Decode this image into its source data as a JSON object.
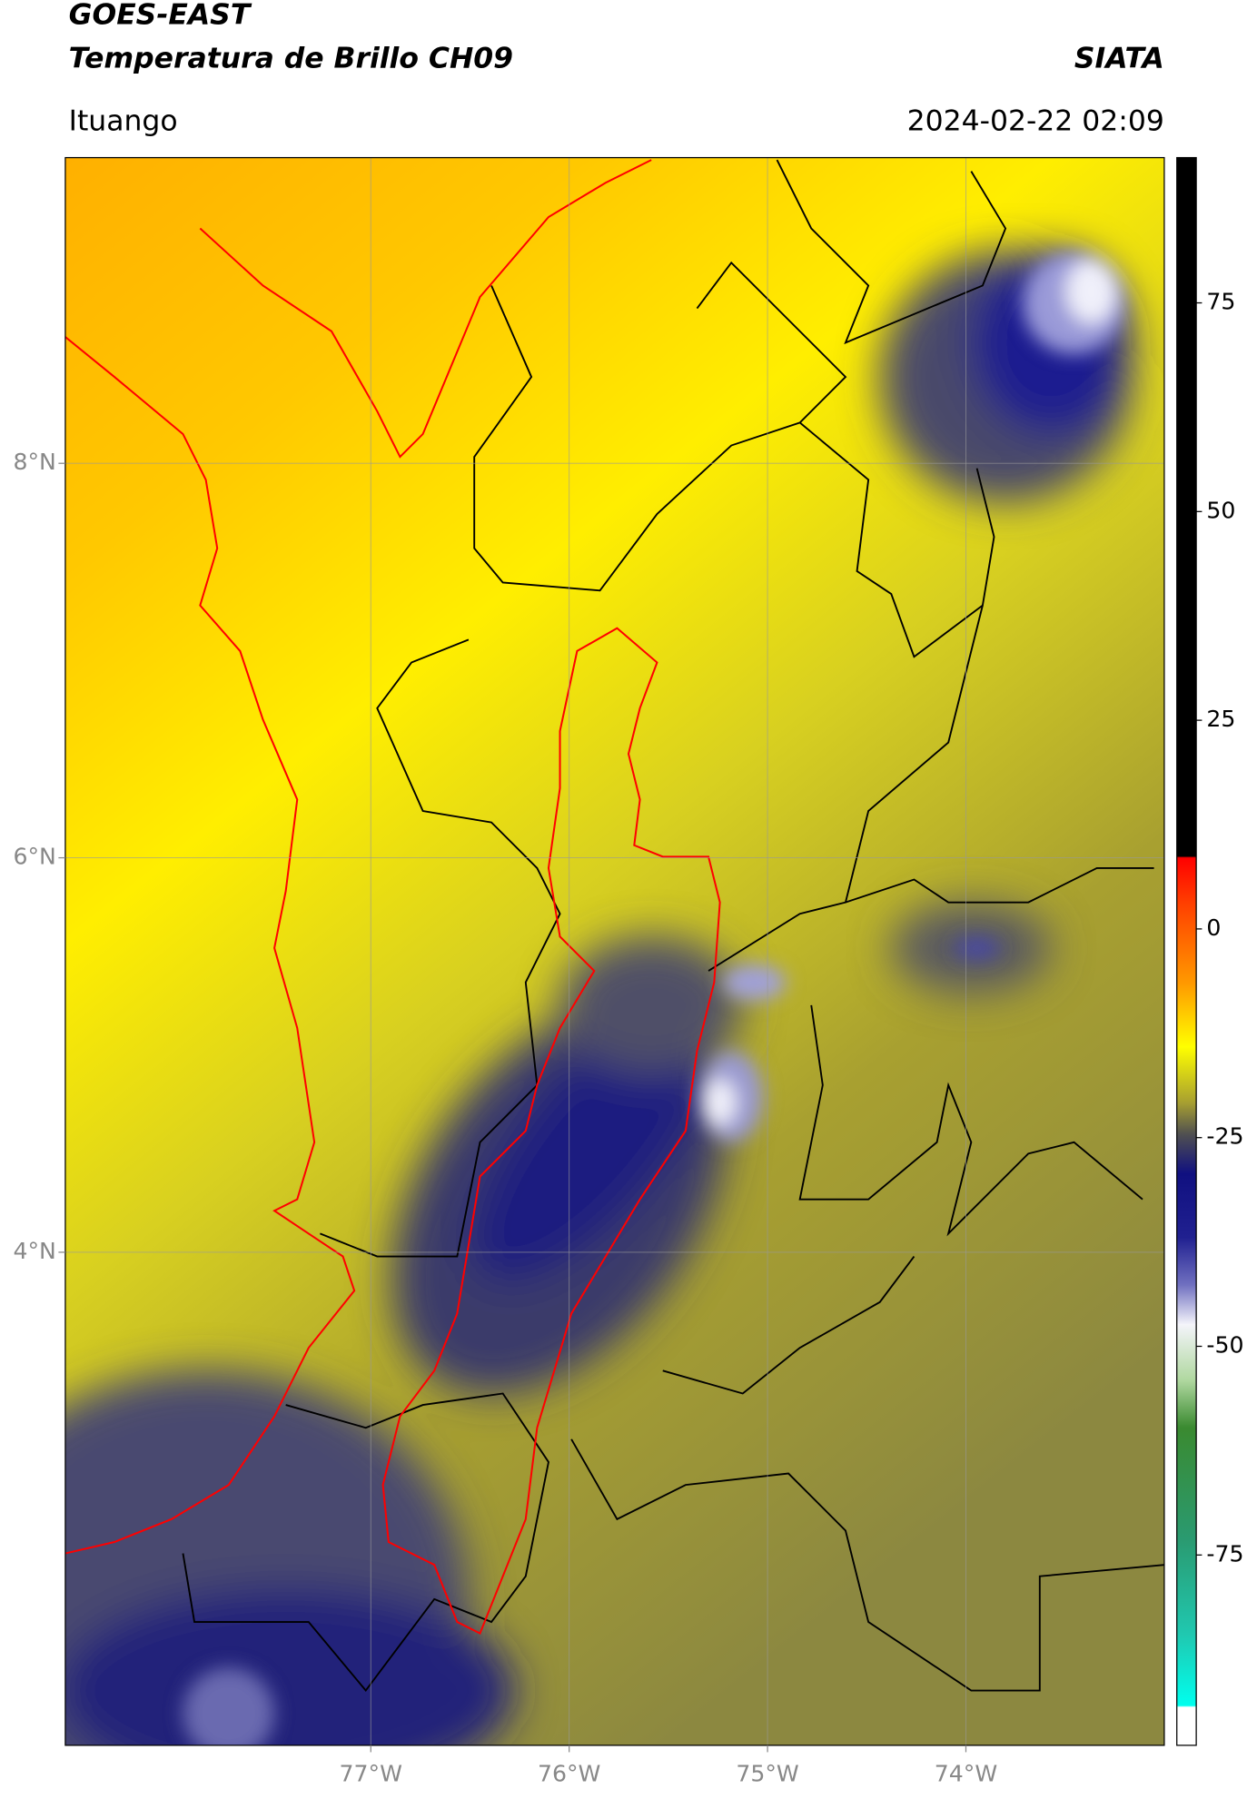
{
  "header": {
    "title": "GOES-EAST",
    "subtitle": "Temperatura de Brillo CH09",
    "brand": "SIATA",
    "region": "Ituango",
    "datetime": "2024-02-22 02:09"
  },
  "map": {
    "xlim": [
      -78.54,
      -73.0
    ],
    "ylim": [
      1.5,
      9.55
    ],
    "xticks": [
      {
        "value": -77,
        "label": "77°W"
      },
      {
        "value": -76,
        "label": "76°W"
      },
      {
        "value": -75,
        "label": "75°W"
      },
      {
        "value": -74,
        "label": "74°W"
      }
    ],
    "yticks": [
      {
        "value": 8,
        "label": "8°N"
      },
      {
        "value": 6,
        "label": "6°N"
      },
      {
        "value": 4,
        "label": "4°N"
      }
    ],
    "grid": true
  },
  "colorbar": {
    "lim": [
      -97.8,
      92.4
    ],
    "ticks": [
      75,
      50,
      25,
      0,
      -25,
      -50,
      -75
    ]
  }
}
